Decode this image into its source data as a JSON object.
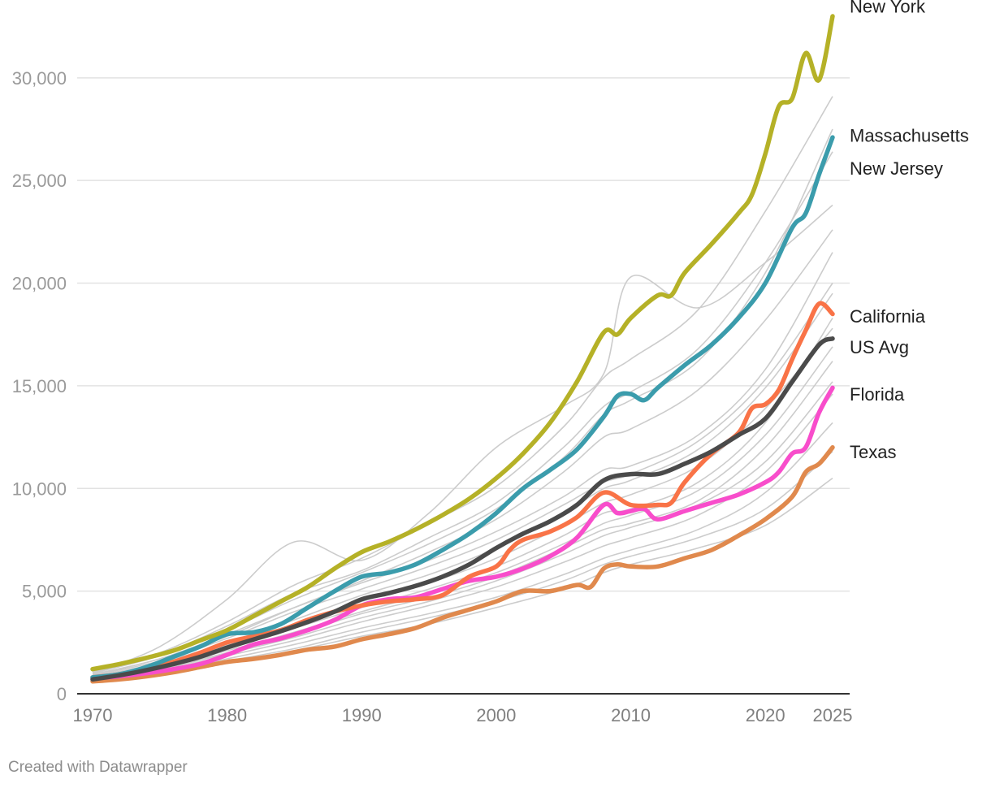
{
  "chart_data": {
    "type": "line",
    "title": "",
    "xlabel": "",
    "ylabel": "",
    "xlim": [
      1970,
      2025
    ],
    "ylim": [
      0,
      33000
    ],
    "x_ticks": [
      1970,
      1980,
      1990,
      2000,
      2010,
      2020,
      2025
    ],
    "x_tick_labels": [
      "1970",
      "1980",
      "1990",
      "2000",
      "2010",
      "2020",
      "2025"
    ],
    "y_ticks": [
      0,
      5000,
      10000,
      15000,
      20000,
      25000,
      30000
    ],
    "y_tick_labels": [
      "0",
      "5,000",
      "10,000",
      "15,000",
      "20,000",
      "25,000",
      "30,000"
    ],
    "grid": true,
    "background_series_color": "#cccccc",
    "background_series": [
      {
        "x": [
          1970,
          1975,
          1980,
          1985,
          1990,
          1995,
          2000,
          2005,
          2008,
          2010,
          2015,
          2020,
          2025
        ],
        "y": [
          950,
          1700,
          2900,
          4200,
          5400,
          6500,
          7900,
          9600,
          10900,
          11100,
          12600,
          15800,
          21500
        ]
      },
      {
        "x": [
          1970,
          1975,
          1980,
          1985,
          1990,
          1995,
          2000,
          2005,
          2008,
          2010,
          2015,
          2020,
          2025
        ],
        "y": [
          800,
          1400,
          2300,
          3200,
          4200,
          5100,
          6200,
          7700,
          8800,
          9000,
          10300,
          13200,
          18300
        ]
      },
      {
        "x": [
          1970,
          1975,
          1980,
          1985,
          1990,
          1995,
          2000,
          2005,
          2008,
          2010,
          2015,
          2020,
          2025
        ],
        "y": [
          700,
          1250,
          2000,
          2900,
          3900,
          4700,
          5700,
          7100,
          8000,
          8300,
          9400,
          12000,
          16200
        ]
      },
      {
        "x": [
          1970,
          1975,
          1980,
          1985,
          1990,
          1995,
          2000,
          2005,
          2008,
          2010,
          2015,
          2020,
          2025
        ],
        "y": [
          650,
          1150,
          1850,
          2600,
          3500,
          4300,
          5200,
          6400,
          7200,
          7600,
          8700,
          10800,
          14600
        ]
      },
      {
        "x": [
          1970,
          1975,
          1980,
          1985,
          1990,
          1995,
          2000,
          2005,
          2008,
          2010,
          2015,
          2020,
          2025
        ],
        "y": [
          600,
          1050,
          1700,
          2400,
          3200,
          3900,
          4700,
          5800,
          6600,
          7000,
          8000,
          9800,
          13200
        ]
      },
      {
        "x": [
          1970,
          1975,
          1980,
          1985,
          1990,
          1995,
          2000,
          2005,
          2008,
          2010,
          2015,
          2020,
          2025
        ],
        "y": [
          620,
          1000,
          1600,
          2200,
          3000,
          3700,
          4500,
          5500,
          6300,
          6700,
          7600,
          9000,
          11800
        ]
      },
      {
        "x": [
          1970,
          1975,
          1980,
          1985,
          1990,
          1995,
          2000,
          2005,
          2008,
          2010,
          2015,
          2020,
          2025
        ],
        "y": [
          580,
          950,
          1500,
          2100,
          2800,
          3400,
          4200,
          5100,
          5900,
          6300,
          7100,
          8200,
          10500
        ]
      },
      {
        "x": [
          1970,
          1975,
          1980,
          1985,
          1990,
          1995,
          2000,
          2005,
          2008,
          2010,
          2015,
          2020,
          2025
        ],
        "y": [
          900,
          1600,
          2700,
          4000,
          5100,
          6200,
          7500,
          9200,
          10300,
          10700,
          12300,
          15300,
          20000
        ]
      },
      {
        "x": [
          1970,
          1975,
          1980,
          1985,
          1990,
          1995,
          2000,
          2005,
          2008,
          2010,
          2015,
          2020,
          2025
        ],
        "y": [
          1000,
          1900,
          3300,
          4900,
          6000,
          7600,
          9300,
          12000,
          14000,
          14700,
          16800,
          21000,
          26400
        ]
      },
      {
        "x": [
          1970,
          1975,
          1980,
          1985,
          1990,
          1995,
          2000,
          2005,
          2008,
          2010,
          2015,
          2020,
          2025
        ],
        "y": [
          1050,
          2000,
          3500,
          5300,
          6600,
          8300,
          10100,
          13000,
          15400,
          16300,
          18700,
          23500,
          29100
        ]
      },
      {
        "x": [
          1970,
          1975,
          1980,
          1985,
          1990,
          1995,
          2000,
          2005,
          2008,
          2010,
          2015,
          2020,
          2025
        ],
        "y": [
          1000,
          1850,
          3100,
          4600,
          5900,
          7300,
          9000,
          11500,
          13600,
          14300,
          16200,
          20500,
          27500
        ]
      },
      {
        "x": [
          1970,
          1975,
          1980,
          1985,
          1990,
          1995,
          2000,
          2005,
          2008,
          2010,
          2015,
          2020,
          2025
        ],
        "y": [
          1000,
          2300,
          4600,
          7400,
          6500,
          8800,
          12000,
          14000,
          15600,
          20300,
          18800,
          21000,
          23800
        ]
      },
      {
        "x": [
          1970,
          1975,
          1980,
          1985,
          1990,
          1995,
          2000,
          2005,
          2008,
          2010,
          2015,
          2020,
          2025
        ],
        "y": [
          850,
          1500,
          2500,
          3600,
          4800,
          5800,
          7100,
          8800,
          10000,
          10400,
          11900,
          14900,
          19500
        ]
      },
      {
        "x": [
          1970,
          1975,
          1980,
          1985,
          1990,
          1995,
          2000,
          2005,
          2008,
          2010,
          2015,
          2020,
          2025
        ],
        "y": [
          750,
          1300,
          2100,
          3000,
          4000,
          4900,
          5900,
          7300,
          8300,
          8700,
          9900,
          12600,
          16900
        ]
      },
      {
        "x": [
          1970,
          1975,
          1980,
          1985,
          1990,
          1995,
          2000,
          2005,
          2008,
          2010,
          2015,
          2020,
          2025
        ],
        "y": [
          900,
          1700,
          2800,
          4200,
          5500,
          6900,
          8500,
          10800,
          12500,
          12900,
          14800,
          18200,
          22600
        ]
      },
      {
        "x": [
          1970,
          1975,
          1980,
          1985,
          1990,
          1995,
          2000,
          2005,
          2008,
          2010,
          2015,
          2020,
          2025
        ],
        "y": [
          700,
          1200,
          1950,
          2750,
          3700,
          4500,
          5500,
          6800,
          7700,
          8100,
          9200,
          11300,
          15200
        ]
      },
      {
        "x": [
          1970,
          1975,
          1980,
          1985,
          1990,
          1995,
          2000,
          2005,
          2008,
          2010,
          2015,
          2020,
          2025
        ],
        "y": [
          820,
          1450,
          2400,
          3400,
          4500,
          5400,
          6600,
          8200,
          9300,
          9700,
          11100,
          13900,
          17800
        ]
      }
    ],
    "series": [
      {
        "name": "New York",
        "label": "New York",
        "color": "#b5b127",
        "x": [
          1970,
          1972,
          1974,
          1976,
          1978,
          1980,
          1982,
          1984,
          1986,
          1988,
          1990,
          1992,
          1994,
          1996,
          1998,
          2000,
          2002,
          2004,
          2006,
          2008,
          2009,
          2010,
          2012,
          2013,
          2014,
          2016,
          2018,
          2019,
          2020,
          2021,
          2022,
          2023,
          2024,
          2025
        ],
        "y": [
          1200,
          1450,
          1750,
          2100,
          2600,
          3100,
          3800,
          4500,
          5200,
          6100,
          6900,
          7400,
          8000,
          8700,
          9500,
          10500,
          11700,
          13200,
          15200,
          17600,
          17500,
          18300,
          19400,
          19400,
          20500,
          21900,
          23400,
          24300,
          26300,
          28600,
          29000,
          31200,
          29900,
          33000
        ]
      },
      {
        "name": "Massachusetts",
        "label": "Massachusetts",
        "color": "#3b9cac",
        "x": [
          1970,
          1972,
          1974,
          1976,
          1978,
          1980,
          1982,
          1984,
          1986,
          1988,
          1990,
          1992,
          1994,
          1996,
          1998,
          2000,
          2002,
          2004,
          2006,
          2008,
          2009,
          2010,
          2011,
          2012,
          2014,
          2016,
          2018,
          2020,
          2022,
          2023,
          2024,
          2025
        ],
        "y": [
          800,
          950,
          1300,
          1800,
          2300,
          2900,
          3000,
          3400,
          4200,
          5000,
          5700,
          5900,
          6300,
          7000,
          7800,
          8800,
          10000,
          10900,
          11900,
          13500,
          14500,
          14600,
          14300,
          14900,
          16000,
          17000,
          18300,
          20000,
          22700,
          23400,
          25300,
          27100
        ]
      },
      {
        "name": "California",
        "label": "California",
        "color": "#f97347",
        "x": [
          1970,
          1972,
          1974,
          1976,
          1978,
          1980,
          1982,
          1984,
          1986,
          1988,
          1990,
          1992,
          1994,
          1996,
          1998,
          2000,
          2001,
          2002,
          2004,
          2006,
          2008,
          2010,
          2012,
          2013,
          2014,
          2016,
          2018,
          2019,
          2020,
          2021,
          2022,
          2023,
          2024,
          2025
        ],
        "y": [
          800,
          950,
          1200,
          1550,
          2000,
          2500,
          2800,
          3100,
          3600,
          4000,
          4300,
          4500,
          4600,
          4800,
          5700,
          6200,
          7000,
          7500,
          7900,
          8600,
          9800,
          9200,
          9200,
          9300,
          10300,
          11700,
          12700,
          13900,
          14100,
          14800,
          16300,
          17700,
          19000,
          18500
        ]
      },
      {
        "name": "US Avg",
        "label": "US Avg",
        "color": "#4a4a4a",
        "x": [
          1970,
          1972,
          1974,
          1976,
          1978,
          1980,
          1982,
          1984,
          1986,
          1988,
          1990,
          1992,
          1994,
          1996,
          1998,
          2000,
          2002,
          2004,
          2006,
          2008,
          2010,
          2012,
          2014,
          2016,
          2018,
          2020,
          2022,
          2024,
          2025
        ],
        "y": [
          700,
          900,
          1150,
          1450,
          1800,
          2250,
          2650,
          3050,
          3500,
          4000,
          4600,
          4900,
          5250,
          5700,
          6300,
          7100,
          7800,
          8400,
          9200,
          10400,
          10700,
          10700,
          11200,
          11800,
          12600,
          13400,
          15200,
          17000,
          17300
        ]
      },
      {
        "name": "Florida",
        "label": "Florida",
        "color": "#f84dcb",
        "x": [
          1970,
          1972,
          1974,
          1976,
          1978,
          1980,
          1982,
          1984,
          1986,
          1988,
          1990,
          1992,
          1994,
          1996,
          1998,
          2000,
          2002,
          2004,
          2006,
          2008,
          2009,
          2010,
          2011,
          2012,
          2014,
          2016,
          2018,
          2020,
          2021,
          2022,
          2023,
          2024,
          2025
        ],
        "y": [
          750,
          850,
          1000,
          1200,
          1450,
          1900,
          2400,
          2700,
          3100,
          3600,
          4300,
          4600,
          4700,
          5100,
          5500,
          5700,
          6100,
          6700,
          7600,
          9200,
          8800,
          8900,
          9000,
          8500,
          8900,
          9300,
          9700,
          10300,
          10800,
          11700,
          12000,
          13700,
          14900
        ]
      },
      {
        "name": "Texas",
        "label": "Texas",
        "color": "#e0894d",
        "x": [
          1970,
          1972,
          1974,
          1976,
          1978,
          1980,
          1982,
          1984,
          1986,
          1988,
          1990,
          1992,
          1994,
          1996,
          1998,
          2000,
          2002,
          2004,
          2006,
          2007,
          2008,
          2009,
          2010,
          2012,
          2014,
          2016,
          2018,
          2020,
          2022,
          2023,
          2024,
          2025
        ],
        "y": [
          600,
          700,
          850,
          1050,
          1300,
          1550,
          1700,
          1900,
          2150,
          2300,
          2650,
          2900,
          3200,
          3700,
          4100,
          4500,
          5000,
          5000,
          5300,
          5200,
          6100,
          6300,
          6200,
          6200,
          6600,
          7000,
          7700,
          8500,
          9600,
          10800,
          11200,
          12000
        ]
      }
    ],
    "end_labels": [
      {
        "text": "New York",
        "value": 33500
      },
      {
        "text": "Massachusetts",
        "value": 27200
      },
      {
        "text": "New Jersey",
        "value": 25600
      },
      {
        "text": "California",
        "value": 18400
      },
      {
        "text": "US Avg",
        "value": 16900
      },
      {
        "text": "Florida",
        "value": 14600
      },
      {
        "text": "Texas",
        "value": 11800
      }
    ]
  },
  "footer": {
    "credit": "Created with Datawrapper"
  }
}
